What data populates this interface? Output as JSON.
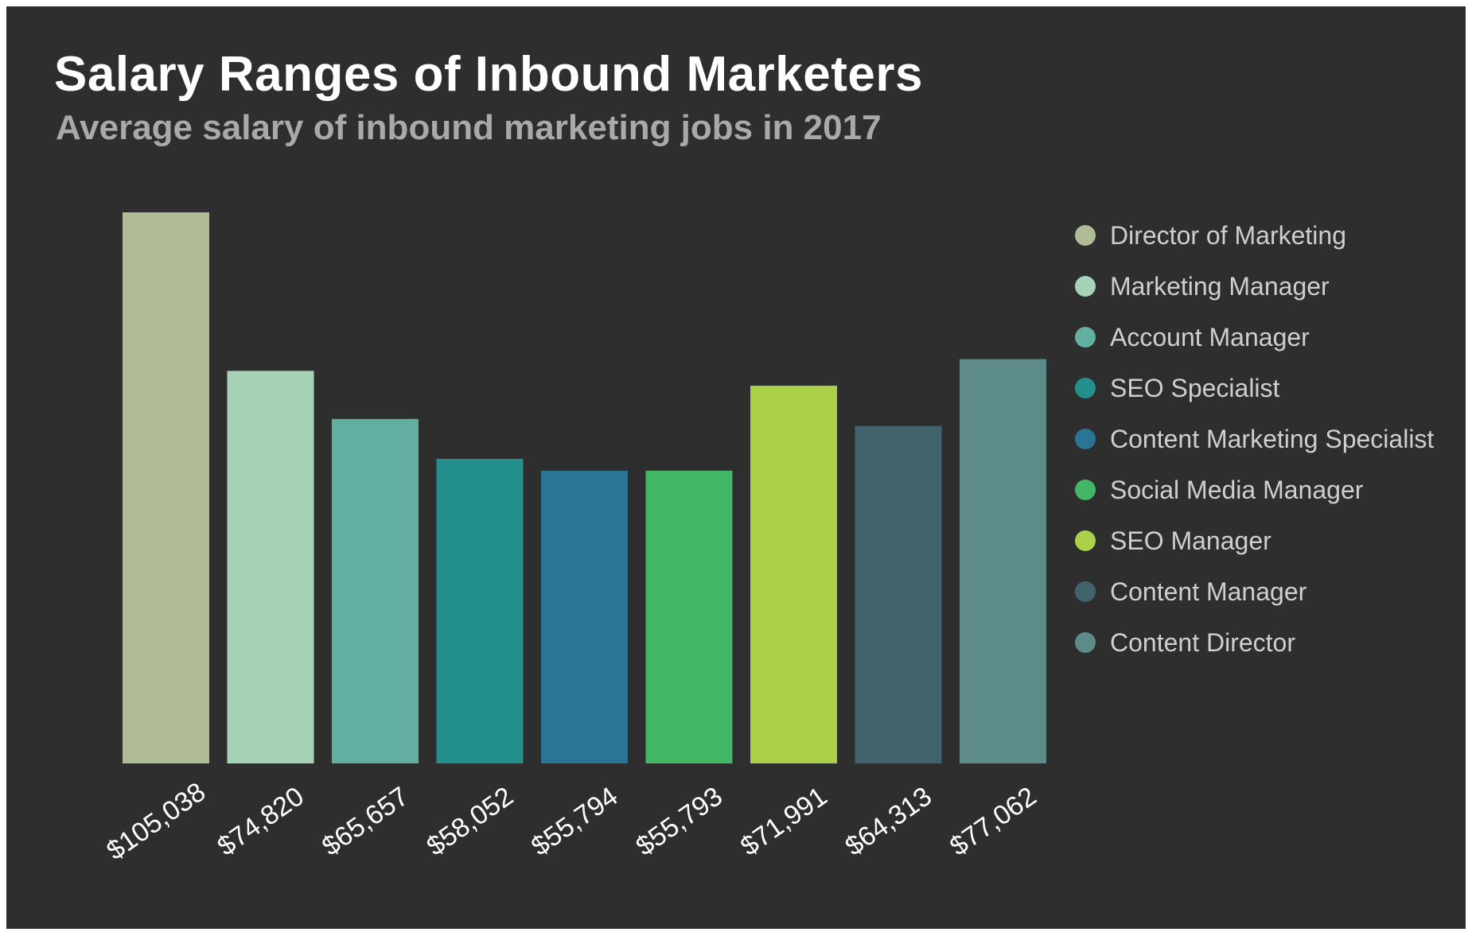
{
  "chart_data": {
    "type": "bar",
    "title": "Salary Ranges of Inbound Marketers",
    "subtitle": "Average salary of inbound marketing jobs in 2017",
    "categories": [
      "Director of Marketing",
      "Marketing Manager",
      "Account Manager",
      "SEO  Specialist",
      "Content Marketing Specialist",
      "Social Media Manager",
      "SEO Manager",
      "Content Manager",
      "Content Director"
    ],
    "values": [
      105038,
      74820,
      65657,
      58052,
      55794,
      55793,
      71991,
      64313,
      77062
    ],
    "value_labels": [
      "$105,038",
      "$74,820",
      "$65,657",
      "$58,052",
      "$55,794",
      "$55,793",
      "$71,991",
      "$64,313",
      "$77,062"
    ],
    "colors": [
      "#afbc96",
      "#a6d3b8",
      "#62aea0",
      "#23908c",
      "#2a7496",
      "#44b766",
      "#abd04a",
      "#42626c",
      "#5c8b89"
    ],
    "legend_position": "right",
    "grid": false,
    "ylim": [
      0,
      105038
    ]
  }
}
